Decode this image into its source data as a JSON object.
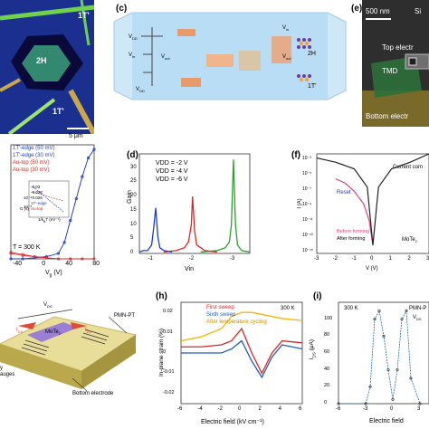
{
  "panels": {
    "c": "(c)",
    "d": "(d)",
    "e": "(e)",
    "f": "(f)",
    "h": "(h)",
    "i": "(i)"
  },
  "panel_a": {
    "label_2h": "2H",
    "label_1t": "1T'",
    "label_1t_top": "1T'",
    "scale": "5 μm"
  },
  "panel_b": {
    "legend": [
      "1T'-edge (50 mV)",
      "1T'-edge (30 mV)",
      "Au-top (50 mV)",
      "Au-top (30 mV)"
    ],
    "temp": "T = 300 K",
    "xlabel": "V",
    "xlabel_sub": "g",
    "xlabel_unit": " (V)",
    "xticks": [
      "-40",
      "0",
      "40",
      "80"
    ],
    "inset_ylabel": "G (s)",
    "inset_xlabel": "1/k",
    "inset_xlabel_tail": "T (eV⁻¹)",
    "inset_vals": [
      "-0.03",
      "-0.028",
      "-0.026",
      "1T'-edge",
      "Au-top"
    ],
    "inset_yticks": [
      "10⁻⁶",
      "10⁻⁸"
    ]
  },
  "panel_c": {
    "vdd": "V",
    "vdd_sub": "DD",
    "vin": "V",
    "vin_sub": "in",
    "vout": "V",
    "vout_sub": "out",
    "vin2": "V",
    "vin2_sub": "in",
    "vout2": "V",
    "vout2_sub": "out",
    "vdd2": "V",
    "vdd2_sub": "DD",
    "label_2h": "2H",
    "label_1t": "1T'"
  },
  "panel_e": {
    "scale": "500 nm",
    "top": "Top electr",
    "tmd": "TMD",
    "bottom": "Bottom electr",
    "corner": "Si"
  },
  "panel_f": {
    "compliance": "Current com",
    "reset": "Reset",
    "material": "MoTe",
    "material_sub": "2",
    "legend": [
      "Before forming",
      "After forming"
    ],
    "xlabel": "V (V)",
    "ylabel": "I (A)",
    "xticks": [
      "-3",
      "-2",
      "-1",
      "0",
      "1",
      "2",
      "3"
    ],
    "yticks": [
      "10⁻³",
      "10⁻⁵",
      "10⁻⁷",
      "10⁻⁹",
      "10⁻¹¹",
      "10⁻¹³",
      "10⁻¹⁵"
    ]
  },
  "panel_g": {
    "vds": "V",
    "vds_sub": "DS",
    "ids_i": "I",
    "ids_i_sub": "DS",
    "mote": "MoTe",
    "mote_sub": "2",
    "pmn": "PMN-PT",
    "bottom": "Bottom electrode",
    "gauges": "y\nauges"
  },
  "panel_h": {
    "legend": [
      "First sweep",
      "Sixth sweep",
      "After temperature cycling"
    ],
    "temp": "300 K",
    "xlabel": "Electric field (kV cm⁻¹)",
    "ylabel": "In-plane strain (%)",
    "xticks": [
      "-6",
      "-4",
      "-2",
      "0",
      "2",
      "4",
      "6"
    ],
    "yticks": [
      "0.02",
      "0.01",
      "0",
      "-0.01",
      "-0.02"
    ]
  },
  "panel_i": {
    "temp": "300 K",
    "material": "PMN-P",
    "vds": "V",
    "vds_sub": "DS",
    "xlabel": "Electric field",
    "ylabel": "I",
    "ylabel_sub": "DS",
    "ylabel_unit": " (μA)",
    "xticks": [
      "-6",
      "-3",
      "0",
      "3"
    ],
    "yticks": [
      "100",
      "80",
      "60",
      "40",
      "20",
      "0"
    ]
  },
  "chart_data": [
    {
      "type": "line",
      "panel": "b",
      "xlabel": "Vg (V)",
      "x_range": [
        -60,
        80
      ],
      "series": [
        {
          "name": "1T'-edge (50 mV)",
          "x": [
            -60,
            -40,
            -20,
            0,
            20,
            30,
            40,
            50,
            60,
            70,
            80
          ],
          "y": [
            0.0,
            0.0,
            0.01,
            0.02,
            0.05,
            0.15,
            0.35,
            0.55,
            0.75,
            0.92,
            1.0
          ]
        },
        {
          "name": "1T'-edge (30 mV)",
          "x": [
            -60,
            -40,
            -20,
            0,
            20,
            30,
            40,
            50,
            60,
            70,
            80
          ],
          "y": [
            0.0,
            0.0,
            0.01,
            0.02,
            0.05,
            0.15,
            0.35,
            0.55,
            0.75,
            0.92,
            1.0
          ]
        },
        {
          "name": "Au-top (50 mV)",
          "x": [
            -60,
            -40,
            -20,
            0,
            20,
            40,
            60,
            80
          ],
          "y": [
            0.06,
            0.04,
            0.02,
            0.01,
            0.0,
            0.0,
            0.0,
            0.0
          ]
        },
        {
          "name": "Au-top (30 mV)",
          "x": [
            -60,
            -40,
            -20,
            0,
            20,
            40,
            60,
            80
          ],
          "y": [
            0.05,
            0.03,
            0.02,
            0.01,
            0.0,
            0.0,
            0.0,
            0.0
          ]
        }
      ]
    },
    {
      "type": "line",
      "panel": "d",
      "xlabel": "Vin",
      "ylabel": "Gain",
      "x_range": [
        -0.7,
        -3.4
      ],
      "y_range": [
        0,
        35
      ],
      "yticks": [
        0,
        5,
        10,
        15,
        20,
        25,
        30
      ],
      "xticks": [
        -1,
        -2,
        -3
      ],
      "legend": [
        "VDD = -2 V",
        "VDD = -4 V",
        "VDD = -6 V"
      ],
      "series": [
        {
          "name": "VDD = -2 V",
          "color": "#2ca02c",
          "x": [
            -2.2,
            -2.6,
            -2.8,
            -2.9,
            -2.95,
            -3.0,
            -3.05,
            -3.1,
            -3.2,
            -3.4
          ],
          "y": [
            0.5,
            1,
            2,
            4,
            10,
            33,
            10,
            3,
            1,
            0.5
          ]
        },
        {
          "name": "VDD = -4 V",
          "color": "#d62728",
          "x": [
            -1.3,
            -1.6,
            -1.8,
            -1.9,
            -1.97,
            -2.0,
            -2.05,
            -2.1,
            -2.3,
            -2.6
          ],
          "y": [
            0.5,
            1,
            2,
            4,
            10,
            20,
            8,
            3,
            1,
            0.5
          ]
        },
        {
          "name": "VDD = -6 V",
          "color": "#1f3fbf",
          "x": [
            -0.7,
            -0.8,
            -0.9,
            -1.0,
            -1.05,
            -1.1,
            -1.15,
            -1.2,
            -1.3,
            -1.5
          ],
          "y": [
            0.5,
            1,
            1,
            3,
            9,
            16,
            6,
            2,
            1,
            0.5
          ]
        }
      ]
    },
    {
      "type": "line",
      "panel": "f",
      "xlabel": "V (V)",
      "ylabel": "I (A)",
      "x_range": [
        -3,
        3
      ],
      "series": [
        {
          "name": "Before forming",
          "color": "#e0407a",
          "x": [
            -2.0,
            -1.5,
            -1.0,
            -0.5,
            -0.2,
            0.0
          ],
          "y": [
            -6,
            -6.5,
            -7.5,
            -9,
            -11,
            -14
          ]
        },
        {
          "name": "After forming",
          "color": "#222222",
          "x": [
            -3,
            -2,
            -1,
            -0.3,
            0,
            0.3,
            1,
            2,
            3
          ],
          "y": [
            -3.5,
            -4,
            -4.8,
            -7,
            -14,
            -7,
            -4.8,
            -4,
            -3
          ]
        }
      ]
    },
    {
      "type": "line",
      "panel": "h",
      "xlabel": "Electric field (kV cm⁻¹)",
      "ylabel": "In-plane strain (%)",
      "x_range": [
        -6,
        6
      ],
      "y_range": [
        -0.025,
        0.025
      ],
      "series": [
        {
          "name": "First sweep",
          "color": "#d62728",
          "x": [
            -6,
            -4,
            -2,
            -1,
            0,
            1,
            2,
            3,
            4,
            6
          ],
          "y": [
            0.003,
            0.003,
            0.004,
            0.006,
            0.012,
            0.0,
            -0.01,
            0.0,
            0.006,
            0.005
          ]
        },
        {
          "name": "Sixth sweep",
          "color": "#1f5fbf",
          "x": [
            -6,
            -4,
            -2,
            -1,
            0,
            1,
            2,
            3,
            4,
            6
          ],
          "y": [
            0.0,
            0.0,
            0.0,
            0.002,
            0.006,
            -0.004,
            -0.012,
            -0.002,
            0.004,
            0.002
          ]
        },
        {
          "name": "After temperature cycling",
          "color": "#f2b705",
          "x": [
            -6,
            -4,
            -2,
            -1,
            0,
            1,
            2,
            3,
            4,
            6
          ],
          "y": [
            0.006,
            0.008,
            0.012,
            0.018,
            0.02,
            0.02,
            0.019,
            0.018,
            0.017,
            0.016
          ]
        }
      ]
    },
    {
      "type": "line",
      "panel": "i",
      "xlabel": "Electric field",
      "ylabel": "IDS (μA)",
      "x_range": [
        -6,
        4
      ],
      "y_range": [
        0,
        120
      ],
      "series": [
        {
          "name": "",
          "color": "#1f6f9f",
          "x": [
            -6,
            -3,
            -2.5,
            -2,
            -1.5,
            -1,
            -0.5,
            0,
            0.5,
            1,
            1.5,
            2,
            3
          ],
          "y": [
            0,
            0,
            20,
            100,
            110,
            80,
            40,
            5,
            40,
            100,
            110,
            30,
            0
          ]
        }
      ]
    }
  ]
}
